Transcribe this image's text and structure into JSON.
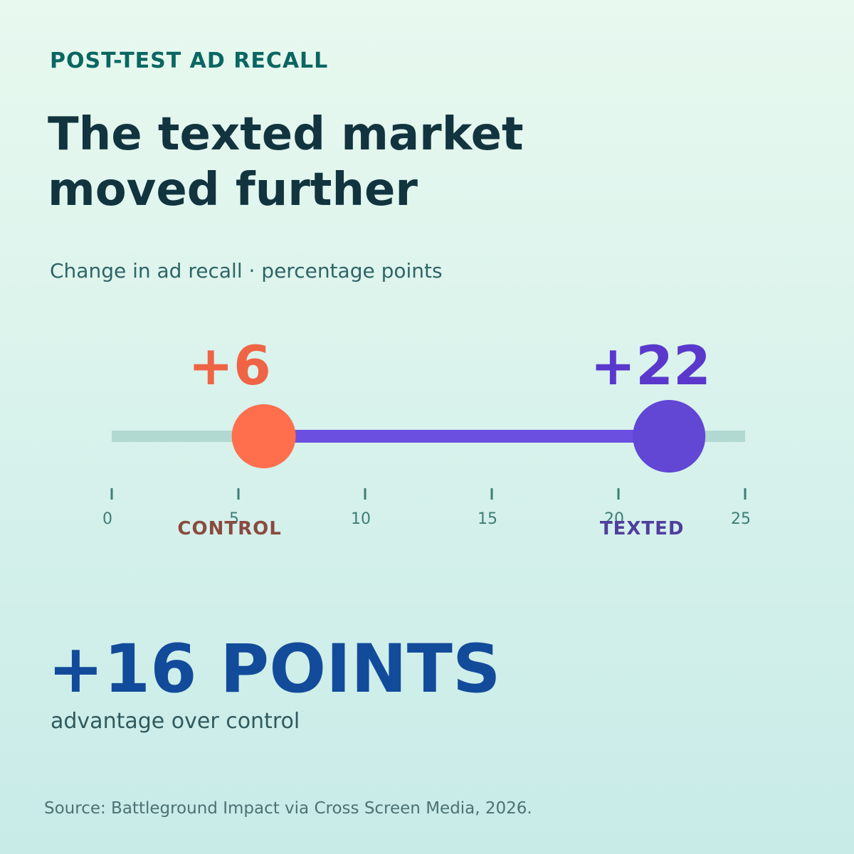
{
  "kicker": "POST-TEST AD RECALL",
  "title_lines": [
    "The texted market",
    "moved further"
  ],
  "subtitle": "Change in ad recall · percentage points",
  "highlight": {
    "value_text": "+16 POINTS",
    "caption": "advantage over control"
  },
  "source": "Source: Battleground Impact via Cross Screen Media, 2026.",
  "colors": {
    "control": "#ff6f4d",
    "control_value": "#ef6445",
    "control_label": "#8a4a40",
    "texted": "#6147d4",
    "texted_value": "#5a38cc",
    "texted_label": "#503e9e",
    "track": "#b2d9d1",
    "connector": "#6a4fe0",
    "axis": "#3f7d77"
  },
  "chart_data": {
    "type": "dumbbell",
    "xlim": [
      0,
      25
    ],
    "ticks": [
      0,
      5,
      10,
      15,
      20,
      25
    ],
    "points": [
      {
        "name": "CONTROL",
        "value": 6,
        "label": "+6"
      },
      {
        "name": "TEXTED",
        "value": 22,
        "label": "+22"
      }
    ]
  }
}
